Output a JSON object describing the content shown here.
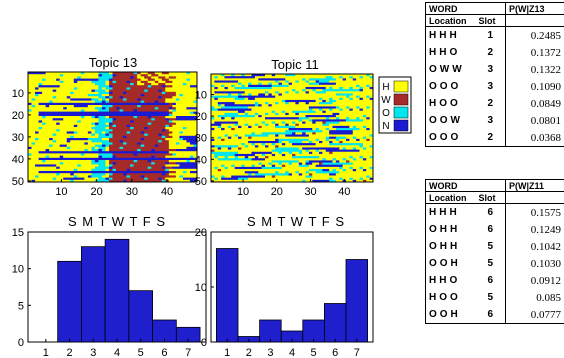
{
  "colors": {
    "H": "#ffff00",
    "W": "#a52a2a",
    "O": "#00e5ee",
    "N": "#1a1ad2",
    "bar": "#1f1fce"
  },
  "legend": {
    "items": [
      "H",
      "W",
      "O",
      "N"
    ]
  },
  "chart_data": [
    {
      "type": "heatmap",
      "title": "Topic 13",
      "x_ticks": [
        "10",
        "20",
        "30",
        "40"
      ],
      "y_ticks": [
        "10",
        "20",
        "30",
        "40",
        "50"
      ],
      "xlim": [
        1,
        48
      ],
      "ylim": [
        1,
        50
      ],
      "categories": [
        "H",
        "W",
        "O",
        "N"
      ],
      "description_of_pattern": "rows x slots; columns ~20-23 mostly O, columns ~24-40 mostly W, otherwise H with scattered N and O"
    },
    {
      "type": "heatmap",
      "title": "Topic 11",
      "x_ticks": [
        "10",
        "20",
        "30",
        "40"
      ],
      "y_ticks": [
        "10",
        "20",
        "30",
        "40",
        "50"
      ],
      "xlim": [
        1,
        48
      ],
      "ylim": [
        1,
        50
      ],
      "categories": [
        "H",
        "W",
        "O",
        "N"
      ]
    },
    {
      "type": "bar",
      "title": "S M T W T F S",
      "categories": [
        "1",
        "2",
        "3",
        "4",
        "5",
        "6",
        "7"
      ],
      "values": [
        0,
        11,
        13,
        14,
        7,
        3,
        2
      ],
      "y_ticks": [
        "0",
        "5",
        "10",
        "15"
      ],
      "ylim": [
        0,
        15
      ]
    },
    {
      "type": "bar",
      "title": "S M T W T F S",
      "categories": [
        "1",
        "2",
        "3",
        "4",
        "5",
        "6",
        "7"
      ],
      "values": [
        17,
        1,
        4,
        2,
        4,
        7,
        15
      ],
      "y_ticks": [
        "0",
        "10",
        "20"
      ],
      "ylim": [
        0,
        20
      ]
    },
    {
      "type": "table",
      "columns": [
        "WORD",
        "P(W|Z13"
      ],
      "subheader": [
        "Location",
        "Slot"
      ],
      "rows": [
        {
          "loc": "HHH",
          "slot": "1",
          "p": "0.2485"
        },
        {
          "loc": "HHO",
          "slot": "2",
          "p": "0.1372"
        },
        {
          "loc": "OWW",
          "slot": "3",
          "p": "0.1322"
        },
        {
          "loc": "OOO",
          "slot": "3",
          "p": "0.1090"
        },
        {
          "loc": "HOO",
          "slot": "2",
          "p": "0.0849"
        },
        {
          "loc": "OOW",
          "slot": "3",
          "p": "0.0801"
        },
        {
          "loc": "OOO",
          "slot": "2",
          "p": "0.0368"
        }
      ]
    },
    {
      "type": "table",
      "columns": [
        "WORD",
        "P(W|Z11"
      ],
      "subheader": [
        "Location",
        "Slot"
      ],
      "rows": [
        {
          "loc": "HHH",
          "slot": "6",
          "p": "0.1575"
        },
        {
          "loc": "OHH",
          "slot": "6",
          "p": "0.1249"
        },
        {
          "loc": "OHH",
          "slot": "5",
          "p": "0.1042"
        },
        {
          "loc": "OOH",
          "slot": "5",
          "p": "0.1030"
        },
        {
          "loc": "HHO",
          "slot": "6",
          "p": "0.0912"
        },
        {
          "loc": "HOO",
          "slot": "5",
          "p": "0.085"
        },
        {
          "loc": "OOH",
          "slot": "6",
          "p": "0.0777"
        }
      ]
    }
  ]
}
